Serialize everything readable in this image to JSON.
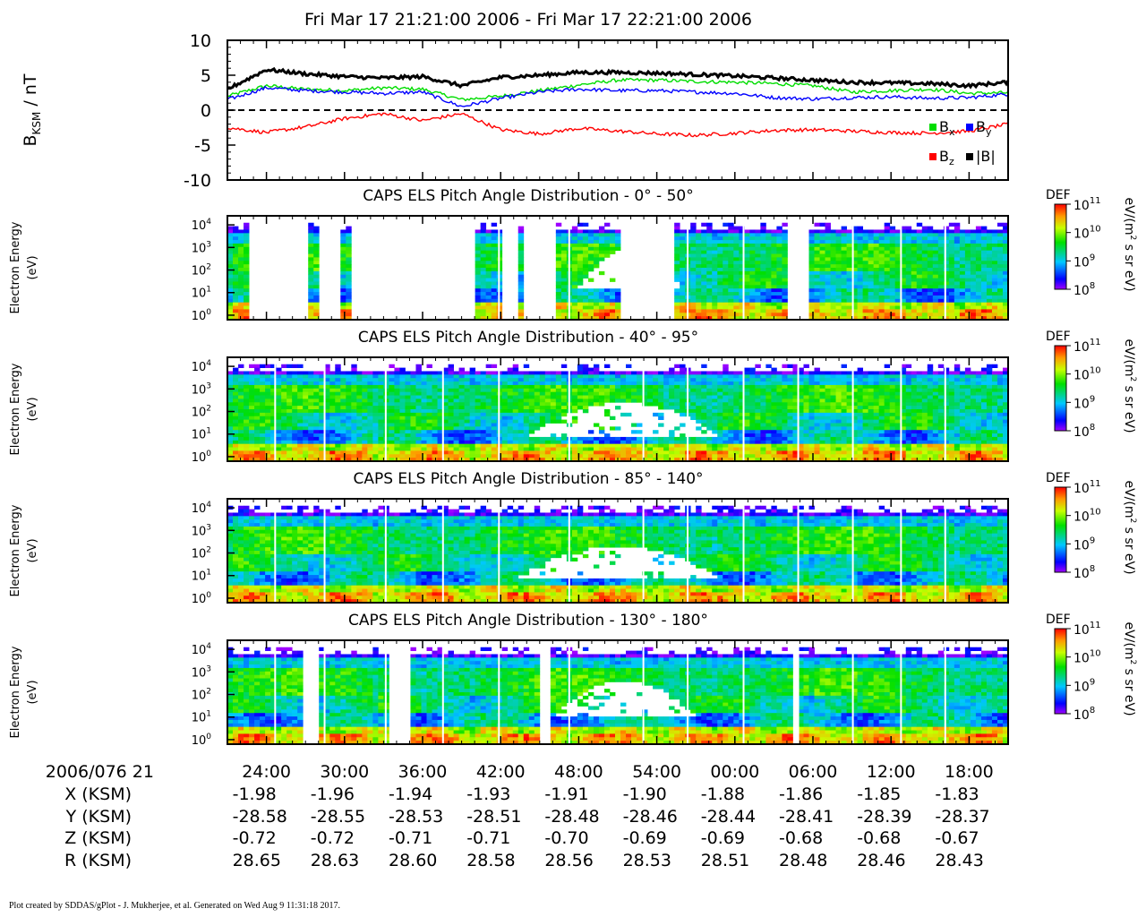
{
  "chart_data": [
    {
      "type": "line",
      "title": "Fri Mar 17 21:21:00 2006 - Fri Mar 17 22:21:00 2006",
      "ylabel_main": "B",
      "ylabel_sub": "KSM",
      "ylabel_unit": " / nT",
      "ylim": [
        -10,
        10
      ],
      "yticks": [
        "10",
        "5",
        "0",
        "-5",
        "-10"
      ],
      "x": [
        0,
        3,
        6,
        9,
        12,
        15,
        18,
        21,
        24,
        27,
        30,
        33,
        36,
        39,
        42,
        45,
        48,
        51,
        54,
        57,
        60
      ],
      "series": [
        {
          "name": "B",
          "sub": "x",
          "color": "#00dd00",
          "values": [
            2.0,
            3.5,
            3.0,
            2.8,
            3.2,
            3.0,
            1.5,
            2.0,
            2.8,
            3.6,
            4.3,
            4.3,
            4.1,
            4.0,
            3.8,
            3.5,
            2.6,
            2.8,
            3.0,
            2.4,
            2.5
          ]
        },
        {
          "name": "B",
          "sub": "y",
          "color": "#0000ff",
          "values": [
            1.5,
            3.2,
            2.8,
            2.6,
            2.4,
            2.6,
            0.5,
            1.7,
            2.6,
            3.0,
            2.8,
            2.8,
            2.6,
            2.4,
            1.8,
            1.6,
            1.8,
            1.9,
            1.7,
            1.8,
            2.3
          ]
        },
        {
          "name": "B",
          "sub": "z",
          "color": "#ff0000",
          "values": [
            -2.5,
            -3.2,
            -2.4,
            -1.2,
            -0.5,
            -1.5,
            -0.5,
            -2.8,
            -3.4,
            -2.6,
            -3.0,
            -3.4,
            -3.6,
            -3.3,
            -2.9,
            -2.8,
            -3.0,
            -3.2,
            -3.3,
            -3.0,
            -2.0
          ]
        },
        {
          "name": "|B|",
          "sub": "",
          "color": "#000000",
          "values": [
            3.0,
            5.8,
            5.2,
            4.8,
            4.6,
            4.8,
            3.5,
            4.7,
            5.0,
            5.4,
            5.4,
            5.3,
            5.1,
            4.9,
            4.6,
            4.3,
            4.0,
            3.9,
            3.8,
            3.5,
            4.0
          ]
        }
      ]
    },
    {
      "type": "heatmap",
      "title": "CAPS ELS Pitch Angle Distribution - 0° - 50°",
      "ylabel": "Electron Energy",
      "yunit": "(eV)",
      "yrange_log10": [
        -0.2,
        4.4
      ],
      "gaps": [
        [
          1.5,
          6.4
        ],
        [
          6.9,
          8.6
        ],
        [
          9.5,
          19.1
        ],
        [
          21.0,
          22.5
        ],
        [
          22.9,
          25.2
        ],
        [
          30.1,
          34.5
        ],
        [
          43.1,
          44.6
        ],
        [
          57.0,
          57.3
        ]
      ],
      "void": {
        "t": [
          27,
          35
        ],
        "log10E": [
          1.2,
          2.9
        ]
      },
      "colorbar": {
        "label": "DEF",
        "ticks": [
          "8",
          "9",
          "10",
          "11"
        ],
        "unit": "eV/(m",
        "unit_sup": "2",
        "unit_tail": " s sr eV)"
      }
    },
    {
      "type": "heatmap",
      "title": "CAPS ELS Pitch Angle Distribution - 40° - 95°",
      "ylabel": "Electron Energy",
      "yunit": "(eV)",
      "yrange_log10": [
        -0.2,
        4.4
      ],
      "gaps": [],
      "void": {
        "t": [
          23,
          38
        ],
        "log10E": [
          0.8,
          2.4
        ]
      },
      "colorbar": {
        "label": "DEF",
        "ticks": [
          "8",
          "9",
          "10",
          "11"
        ],
        "unit": "eV/(m",
        "unit_sup": "2",
        "unit_tail": " s sr eV)"
      }
    },
    {
      "type": "heatmap",
      "title": "CAPS ELS Pitch Angle Distribution - 85° - 140°",
      "ylabel": "Electron Energy",
      "yunit": "(eV)",
      "yrange_log10": [
        -0.2,
        4.4
      ],
      "gaps": [],
      "void": {
        "t": [
          22,
          38
        ],
        "log10E": [
          0.8,
          2.3
        ]
      },
      "colorbar": {
        "label": "DEF",
        "ticks": [
          "8",
          "9",
          "10",
          "11"
        ],
        "unit": "eV/(m",
        "unit_sup": "2",
        "unit_tail": " s sr eV)"
      }
    },
    {
      "type": "heatmap",
      "title": "CAPS ELS Pitch Angle Distribution - 130° - 180°",
      "ylabel": "Electron Energy",
      "yunit": "(eV)",
      "yrange_log10": [
        -0.2,
        4.4
      ],
      "gaps": [
        [
          5.7,
          6.2
        ],
        [
          6.3,
          6.5
        ],
        [
          6.8,
          7.0
        ],
        [
          12.3,
          14.0
        ],
        [
          23.8,
          24.8
        ],
        [
          43.3,
          44.0
        ]
      ],
      "void": {
        "t": [
          25,
          36
        ],
        "log10E": [
          1.0,
          2.6
        ]
      },
      "colorbar": {
        "label": "DEF",
        "ticks": [
          "8",
          "9",
          "10",
          "11"
        ],
        "unit": "eV/(m",
        "unit_sup": "2",
        "unit_tail": " s sr eV)"
      }
    }
  ],
  "xaxis": {
    "start_label": "2006/076 21",
    "tick_minutes": [
      3,
      9,
      15,
      21,
      27,
      33,
      39,
      45,
      51,
      57
    ],
    "rows": [
      {
        "label": "",
        "values": [
          "24:00",
          "30:00",
          "36:00",
          "42:00",
          "48:00",
          "54:00",
          "00:00",
          "06:00",
          "12:00",
          "18:00"
        ]
      },
      {
        "label": "X (KSM)",
        "values": [
          "-1.98",
          "-1.96",
          "-1.94",
          "-1.93",
          "-1.91",
          "-1.90",
          "-1.88",
          "-1.86",
          "-1.85",
          "-1.83"
        ]
      },
      {
        "label": "Y (KSM)",
        "values": [
          "-28.58",
          "-28.55",
          "-28.53",
          "-28.51",
          "-28.48",
          "-28.46",
          "-28.44",
          "-28.41",
          "-28.39",
          "-28.37"
        ]
      },
      {
        "label": "Z (KSM)",
        "values": [
          "-0.72",
          "-0.72",
          "-0.71",
          "-0.71",
          "-0.70",
          "-0.69",
          "-0.69",
          "-0.68",
          "-0.68",
          "-0.67"
        ]
      },
      {
        "label": "R (KSM)",
        "values": [
          "28.65",
          "28.63",
          "28.60",
          "28.58",
          "28.56",
          "28.53",
          "28.51",
          "28.48",
          "28.46",
          "28.43"
        ]
      }
    ]
  },
  "footer": "Plot created by SDDAS/gPlot - J. Mukherjee, et al.  Generated on Wed Aug 9 11:31:18 2017."
}
